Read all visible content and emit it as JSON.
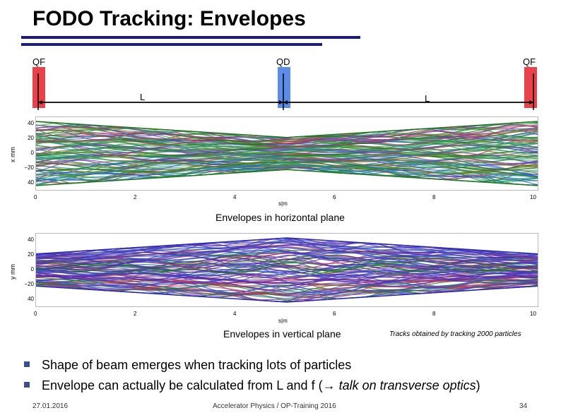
{
  "slide": {
    "title": "FODO Tracking: Envelopes",
    "magnets": {
      "qf_left": "QF",
      "qd": "QD",
      "qf_right": "QF",
      "drift_left": "L",
      "drift_right": "L",
      "focusing_color": "#e8434b",
      "defocusing_color": "#5b8de8"
    },
    "plots": {
      "horizontal": {
        "ylabel": "x mm",
        "xlabel": "s|m",
        "yticks": [
          "40",
          "20",
          "0",
          "−20",
          "40"
        ],
        "xticks": [
          "0",
          "2",
          "4",
          "6",
          "8",
          "10"
        ],
        "caption": "Envelopes in horizontal plane"
      },
      "vertical": {
        "ylabel": "y mm",
        "xlabel": "s|m",
        "yticks": [
          "40",
          "20",
          "0",
          "−20",
          "40"
        ],
        "xticks": [
          "0",
          "2",
          "4",
          "6",
          "8",
          "10"
        ],
        "caption": "Envelopes in vertical plane"
      },
      "tracks_note": "Tracks obtained by tracking 2000 particles"
    },
    "bullets": [
      {
        "text": "Shape of beam emerges when tracking lots of particles"
      },
      {
        "text": "Envelope can actually be calculated from L and f (",
        "arrow": "→",
        "italic": " talk on transverse optics",
        "after": ")"
      }
    ],
    "footer": {
      "date": "27.01.2016",
      "center": "Accelerator Physics / OP-Training 2016",
      "page": "34"
    }
  },
  "chart_data": [
    {
      "type": "line",
      "title": "",
      "xlabel": "s|m",
      "ylabel": "x mm",
      "xlim": [
        0,
        10
      ],
      "ylim": [
        -40,
        40
      ],
      "series": [
        {
          "x": [
            0,
            5,
            10
          ],
          "values": [
            36,
            18,
            36
          ]
        },
        {
          "x": [
            0,
            5,
            10
          ],
          "values": [
            -36,
            -18,
            -36
          ]
        }
      ],
      "caption": "Envelopes in horizontal plane"
    },
    {
      "type": "line",
      "title": "",
      "xlabel": "s|m",
      "ylabel": "y mm",
      "xlim": [
        0,
        10
      ],
      "ylim": [
        -40,
        40
      ],
      "series": [
        {
          "x": [
            0,
            5,
            10
          ],
          "values": [
            18,
            36,
            18
          ]
        },
        {
          "x": [
            0,
            5,
            10
          ],
          "values": [
            -18,
            -36,
            -18
          ]
        }
      ],
      "caption": "Envelopes in vertical plane"
    }
  ]
}
